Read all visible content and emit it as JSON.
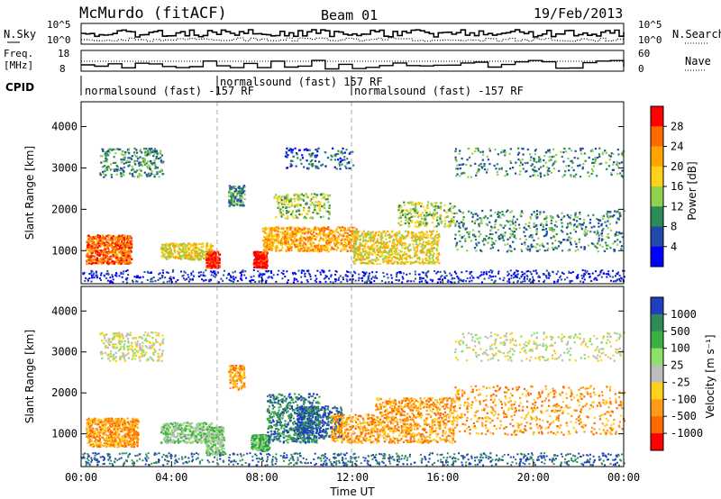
{
  "header": {
    "station": "McMurdo (fitACF)",
    "beam": "Beam 01",
    "date": "19/Feb/2013"
  },
  "summary": {
    "nsky_label": "N.Sky",
    "nsearch_label": "N.Search",
    "nsky_ticks": [
      "10^5",
      "10^0"
    ],
    "nsearch_ticks": [
      "10^5",
      "10^0"
    ],
    "freq_label_1": "Freq.",
    "freq_label_2": "[MHz]",
    "freq_ticks": [
      "18",
      "8"
    ],
    "nave_label": "Nave",
    "nave_ticks": [
      "60",
      "0"
    ],
    "cpid_label": "CPID",
    "cpid_segments": [
      "normalsound (fast) -157 RF",
      "normalsound (fast) 157 RF",
      "normalsound (fast) -157 RF"
    ]
  },
  "chart_data": [
    {
      "type": "heatmap",
      "title": "",
      "xlabel": "Time UT",
      "ylabel": "Slant Range [km]",
      "x_ticks": [
        "00:00",
        "04:00",
        "08:00",
        "12:00",
        "16:00",
        "20:00",
        "00:00"
      ],
      "y_ticks": [
        "1000",
        "2000",
        "3000",
        "4000"
      ],
      "colorbar_label": "Power [dB]",
      "colorbar_ticks": [
        "4",
        "8",
        "12",
        "16",
        "20",
        "24",
        "28"
      ],
      "colors": [
        "#0000ff",
        "#1f4aa8",
        "#2e8b57",
        "#8fd14f",
        "#ffd21a",
        "#ffa500",
        "#ff6a00",
        "#ff0000"
      ]
    },
    {
      "type": "heatmap",
      "title": "",
      "xlabel": "Time UT",
      "ylabel": "Slant Range [km]",
      "x_ticks": [
        "00:00",
        "04:00",
        "08:00",
        "12:00",
        "16:00",
        "20:00",
        "00:00"
      ],
      "y_ticks": [
        "1000",
        "2000",
        "3000",
        "4000"
      ],
      "colorbar_label": "Velocity [m s⁻¹]",
      "colorbar_ticks": [
        "1000",
        "500",
        "100",
        "25",
        "-25",
        "-100",
        "-500",
        "-1000"
      ],
      "colors": [
        "#1f3fbf",
        "#2e8b57",
        "#3cb043",
        "#8fe06a",
        "#bdbdbd",
        "#ffd21a",
        "#ff9a1a",
        "#ff6a00",
        "#ff0000"
      ]
    }
  ]
}
